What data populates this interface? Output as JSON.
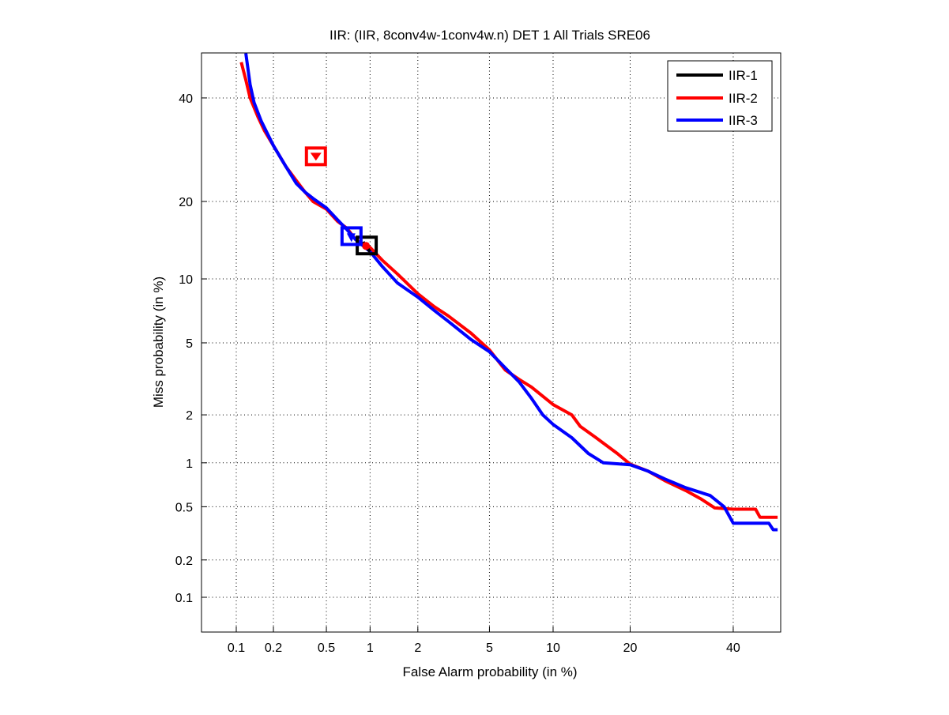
{
  "chart_data": {
    "type": "line",
    "scale": "probit (DET)",
    "title": "IIR: (IIR, 8conv4w-1conv4w.n) DET 1 All Trials SRE06",
    "xlabel": "False Alarm probability (in %)",
    "ylabel": "Miss probability (in %)",
    "xlim": [
      0.05,
      50
    ],
    "ylim": [
      0.05,
      50
    ],
    "xticks": [
      "0.1",
      "0.2",
      "0.5",
      "1",
      "2",
      "5",
      "10",
      "20",
      "40"
    ],
    "yticks": [
      "0.1",
      "0.2",
      "0.5",
      "1",
      "2",
      "5",
      "10",
      "20",
      "40"
    ],
    "grid": true,
    "legend_position": "top-right",
    "series": [
      {
        "name": "IIR-1",
        "color": "#000000",
        "points": [
          [
            0.9,
            14.2
          ],
          [
            0.95,
            13.5
          ],
          [
            1.0,
            13.0
          ]
        ],
        "marker": [
          0.95,
          13.8
        ]
      },
      {
        "name": "IIR-2",
        "color": "#ff0000",
        "points": [
          [
            0.11,
            48
          ],
          [
            0.12,
            44
          ],
          [
            0.13,
            40
          ],
          [
            0.15,
            36
          ],
          [
            0.17,
            33
          ],
          [
            0.2,
            30
          ],
          [
            0.25,
            26
          ],
          [
            0.3,
            23.5
          ],
          [
            0.35,
            21.5
          ],
          [
            0.4,
            20
          ],
          [
            0.5,
            18.8
          ],
          [
            0.6,
            17
          ],
          [
            0.7,
            16
          ],
          [
            0.8,
            14.5
          ],
          [
            1.0,
            13.5
          ],
          [
            1.2,
            12
          ],
          [
            1.5,
            10.5
          ],
          [
            2,
            8.6
          ],
          [
            2.5,
            7.5
          ],
          [
            3,
            6.8
          ],
          [
            4,
            5.6
          ],
          [
            5,
            4.6
          ],
          [
            6,
            3.6
          ],
          [
            7,
            3.2
          ],
          [
            8,
            2.9
          ],
          [
            10,
            2.3
          ],
          [
            12,
            2.0
          ],
          [
            13,
            1.7
          ],
          [
            15,
            1.45
          ],
          [
            18,
            1.15
          ],
          [
            20,
            0.98
          ],
          [
            23,
            0.88
          ],
          [
            26,
            0.76
          ],
          [
            30,
            0.65
          ],
          [
            33,
            0.57
          ],
          [
            36,
            0.49
          ],
          [
            40,
            0.48
          ],
          [
            45,
            0.48
          ],
          [
            46,
            0.42
          ],
          [
            50,
            0.42
          ]
        ],
        "marker": [
          0.42,
          28
        ]
      },
      {
        "name": "IIR-3",
        "color": "#0000ff",
        "points": [
          [
            0.12,
            50
          ],
          [
            0.13,
            43
          ],
          [
            0.14,
            39
          ],
          [
            0.16,
            35
          ],
          [
            0.2,
            30
          ],
          [
            0.25,
            26
          ],
          [
            0.3,
            23
          ],
          [
            0.35,
            21.5
          ],
          [
            0.4,
            20.5
          ],
          [
            0.5,
            19
          ],
          [
            0.6,
            17.2
          ],
          [
            0.7,
            15.8
          ],
          [
            0.8,
            14.5
          ],
          [
            1.0,
            13
          ],
          [
            1.2,
            11.3
          ],
          [
            1.5,
            9.6
          ],
          [
            2,
            8.3
          ],
          [
            2.5,
            7.2
          ],
          [
            3,
            6.4
          ],
          [
            4,
            5.2
          ],
          [
            5,
            4.5
          ],
          [
            6,
            3.7
          ],
          [
            7,
            3.1
          ],
          [
            8,
            2.5
          ],
          [
            9,
            2.0
          ],
          [
            10,
            1.75
          ],
          [
            12,
            1.45
          ],
          [
            14,
            1.15
          ],
          [
            16,
            1.0
          ],
          [
            20,
            0.97
          ],
          [
            23,
            0.88
          ],
          [
            26,
            0.78
          ],
          [
            30,
            0.68
          ],
          [
            35,
            0.6
          ],
          [
            38,
            0.5
          ],
          [
            40,
            0.38
          ],
          [
            48,
            0.38
          ],
          [
            49,
            0.34
          ],
          [
            50,
            0.34
          ]
        ],
        "marker": [
          0.75,
          15
        ]
      }
    ]
  }
}
